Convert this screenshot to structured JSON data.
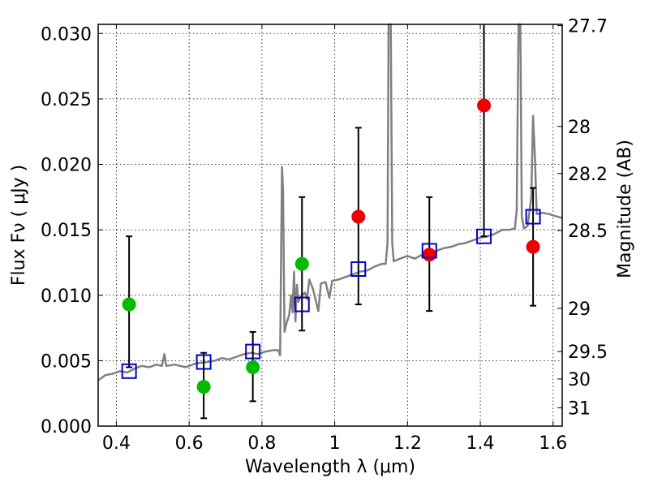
{
  "chart_data": {
    "type": "scatter",
    "xlabel": "Wavelength  λ (μm)",
    "ylabel_main": "Flux  Fν  ( μJy )",
    "y2label": "Magnitude (AB)",
    "xlim": [
      0.35,
      1.625
    ],
    "ylim": [
      0.0,
      0.0307
    ],
    "x_ticks": [
      0.4,
      0.6,
      0.8,
      1.0,
      1.2,
      1.4,
      1.6
    ],
    "x_tick_labels": [
      "0.4",
      "0.6",
      "0.8",
      "1",
      "1.2",
      "1.4",
      "1.6"
    ],
    "y_ticks": [
      0.0,
      0.005,
      0.01,
      0.015,
      0.02,
      0.025,
      0.03
    ],
    "y_tick_labels": [
      "0.000",
      "0.005",
      "0.010",
      "0.015",
      "0.020",
      "0.025",
      "0.030"
    ],
    "y2_ticks": [
      {
        "label": "27.7",
        "flux": 0.0306
      },
      {
        "label": "28",
        "flux": 0.0229
      },
      {
        "label": "28.2",
        "flux": 0.0193
      },
      {
        "label": "28.5",
        "flux": 0.01495
      },
      {
        "label": "29",
        "flux": 0.009
      },
      {
        "label": "29.5",
        "flux": 0.0057
      },
      {
        "label": "30",
        "flux": 0.0036
      },
      {
        "label": "31",
        "flux": 0.0014
      }
    ],
    "grid": true,
    "series": [
      {
        "marker": "circle",
        "color": "#00bb00",
        "points": [
          {
            "x": 0.435,
            "y": 0.0093,
            "err_lo": 0.0045,
            "err_hi": 0.0145
          },
          {
            "x": 0.64,
            "y": 0.003,
            "err_lo": 0.0006,
            "err_hi": 0.0056
          },
          {
            "x": 0.775,
            "y": 0.0045,
            "err_lo": 0.0019,
            "err_hi": 0.0072
          },
          {
            "x": 0.91,
            "y": 0.0124,
            "err_lo": 0.0073,
            "err_hi": 0.0175
          }
        ]
      },
      {
        "marker": "circle",
        "color": "#ee0000",
        "points": [
          {
            "x": 1.065,
            "y": 0.016,
            "err_lo": 0.0093,
            "err_hi": 0.0228
          },
          {
            "x": 1.26,
            "y": 0.0131,
            "err_lo": 0.0088,
            "err_hi": 0.0175
          },
          {
            "x": 1.41,
            "y": 0.0245,
            "err_lo": 0.0145,
            "err_hi": 0.031
          },
          {
            "x": 1.545,
            "y": 0.0137,
            "err_lo": 0.0092,
            "err_hi": 0.0182
          }
        ]
      },
      {
        "marker": "open-square",
        "color": "#0000cc",
        "points": [
          {
            "x": 0.435,
            "y": 0.0042
          },
          {
            "x": 0.64,
            "y": 0.0049
          },
          {
            "x": 0.775,
            "y": 0.0057
          },
          {
            "x": 0.91,
            "y": 0.0093
          },
          {
            "x": 1.065,
            "y": 0.012
          },
          {
            "x": 1.26,
            "y": 0.0134
          },
          {
            "x": 1.41,
            "y": 0.0145
          },
          {
            "x": 1.545,
            "y": 0.016
          }
        ]
      }
    ],
    "model_spectrum": {
      "color": "#808080",
      "points": [
        [
          0.35,
          0.0035
        ],
        [
          0.37,
          0.0039
        ],
        [
          0.39,
          0.004
        ],
        [
          0.41,
          0.0042
        ],
        [
          0.43,
          0.0041
        ],
        [
          0.45,
          0.0044
        ],
        [
          0.47,
          0.0046
        ],
        [
          0.49,
          0.0045
        ],
        [
          0.51,
          0.0047
        ],
        [
          0.525,
          0.0046
        ],
        [
          0.532,
          0.0055
        ],
        [
          0.537,
          0.0046
        ],
        [
          0.56,
          0.0047
        ],
        [
          0.59,
          0.0045
        ],
        [
          0.62,
          0.0048
        ],
        [
          0.65,
          0.0049
        ],
        [
          0.67,
          0.005
        ],
        [
          0.69,
          0.0052
        ],
        [
          0.71,
          0.0051
        ],
        [
          0.73,
          0.0053
        ],
        [
          0.75,
          0.0055
        ],
        [
          0.77,
          0.0056
        ],
        [
          0.79,
          0.0055
        ],
        [
          0.81,
          0.0057
        ],
        [
          0.83,
          0.0058
        ],
        [
          0.845,
          0.0058
        ],
        [
          0.85,
          0.0054
        ],
        [
          0.852,
          0.011
        ],
        [
          0.855,
          0.0198
        ],
        [
          0.858,
          0.018
        ],
        [
          0.862,
          0.0072
        ],
        [
          0.868,
          0.0079
        ],
        [
          0.875,
          0.0085
        ],
        [
          0.88,
          0.01
        ],
        [
          0.884,
          0.0087
        ],
        [
          0.888,
          0.0118
        ],
        [
          0.892,
          0.008
        ],
        [
          0.896,
          0.0108
        ],
        [
          0.9,
          0.0095
        ],
        [
          0.905,
          0.0098
        ],
        [
          0.91,
          0.01
        ],
        [
          0.918,
          0.0102
        ],
        [
          0.924,
          0.0097
        ],
        [
          0.93,
          0.0112
        ],
        [
          0.94,
          0.0105
        ],
        [
          0.955,
          0.0088
        ],
        [
          0.962,
          0.0109
        ],
        [
          0.975,
          0.011
        ],
        [
          0.985,
          0.0098
        ],
        [
          0.993,
          0.0111
        ],
        [
          1.01,
          0.0112
        ],
        [
          1.03,
          0.0114
        ],
        [
          1.05,
          0.0116
        ],
        [
          1.07,
          0.0118
        ],
        [
          1.09,
          0.0119
        ],
        [
          1.11,
          0.0122
        ],
        [
          1.13,
          0.0124
        ],
        [
          1.14,
          0.0124
        ],
        [
          1.145,
          0.014
        ],
        [
          1.148,
          0.0307
        ],
        [
          1.154,
          0.0307
        ],
        [
          1.158,
          0.014
        ],
        [
          1.162,
          0.0126
        ],
        [
          1.18,
          0.0128
        ],
        [
          1.2,
          0.013
        ],
        [
          1.22,
          0.0128
        ],
        [
          1.24,
          0.0131
        ],
        [
          1.26,
          0.0132
        ],
        [
          1.28,
          0.0134
        ],
        [
          1.3,
          0.0136
        ],
        [
          1.32,
          0.0137
        ],
        [
          1.34,
          0.0139
        ],
        [
          1.36,
          0.014
        ],
        [
          1.38,
          0.0142
        ],
        [
          1.4,
          0.0144
        ],
        [
          1.42,
          0.0145
        ],
        [
          1.44,
          0.0147
        ],
        [
          1.46,
          0.015
        ],
        [
          1.48,
          0.015
        ],
        [
          1.495,
          0.0151
        ],
        [
          1.5,
          0.0165
        ],
        [
          1.505,
          0.0307
        ],
        [
          1.51,
          0.0307
        ],
        [
          1.514,
          0.016
        ],
        [
          1.52,
          0.0151
        ],
        [
          1.53,
          0.0153
        ],
        [
          1.54,
          0.0175
        ],
        [
          1.545,
          0.0237
        ],
        [
          1.55,
          0.0205
        ],
        [
          1.555,
          0.0162
        ],
        [
          1.57,
          0.0163
        ],
        [
          1.59,
          0.0162
        ],
        [
          1.6,
          0.0161
        ],
        [
          1.625,
          0.0159
        ]
      ]
    }
  }
}
